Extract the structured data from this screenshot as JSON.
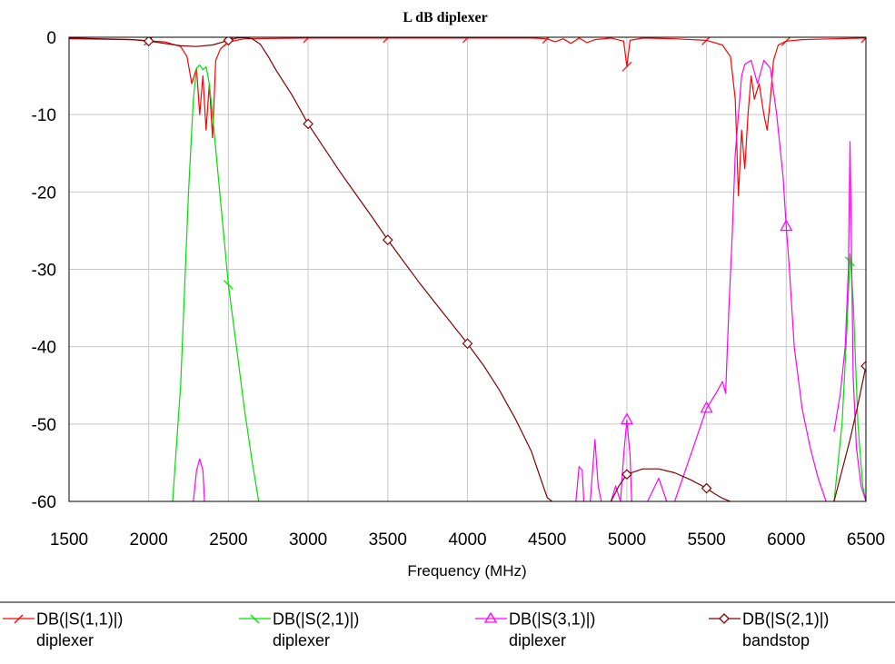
{
  "chart_data": {
    "type": "line",
    "title": "L dB diplexer",
    "xlabel": "Frequency (MHz)",
    "ylabel": "",
    "xlim": [
      1500,
      6500
    ],
    "ylim": [
      -60,
      0
    ],
    "xticks": [
      1500,
      2000,
      2500,
      3000,
      3500,
      4000,
      4500,
      5000,
      5500,
      6000,
      6500
    ],
    "yticks": [
      0,
      -10,
      -20,
      -30,
      -40,
      -50,
      -60
    ],
    "grid": true,
    "legend_position": "bottom",
    "series": [
      {
        "name": "DB(|S(1,1)|)",
        "sub": "diplexer",
        "color": "#ff0000",
        "marker": "tick",
        "markers_x": [
          1500,
          2000,
          2500,
          3000,
          3500,
          4000,
          4500,
          5000,
          5500,
          6000,
          6500
        ],
        "x": [
          1500,
          1900,
          2100,
          2200,
          2240,
          2270,
          2300,
          2320,
          2340,
          2360,
          2380,
          2400,
          2420,
          2450,
          2500,
          2600,
          3000,
          3500,
          4000,
          4400,
          4500,
          4550,
          4600,
          4650,
          4700,
          4750,
          4800,
          4900,
          4980,
          5000,
          5020,
          5100,
          5300,
          5500,
          5600,
          5650,
          5680,
          5700,
          5720,
          5740,
          5760,
          5780,
          5800,
          5830,
          5860,
          5880,
          5900,
          5920,
          5950,
          6000,
          6100,
          6300,
          6500
        ],
        "y": [
          -0.2,
          -0.3,
          -0.6,
          -1.2,
          -2.5,
          -6,
          -4,
          -10,
          -5,
          -12,
          -6,
          -13,
          -3,
          -1.5,
          -0.6,
          -0.2,
          -0.1,
          -0.1,
          -0.1,
          -0.1,
          -0.2,
          -0.6,
          -0.2,
          -0.8,
          -0.1,
          -0.7,
          -0.3,
          -0.1,
          -0.5,
          -3.8,
          -0.4,
          -0.1,
          -0.2,
          -0.4,
          -1,
          -2.5,
          -8,
          -20.5,
          -12,
          -17,
          -10,
          -5,
          -8,
          -6,
          -10,
          -12,
          -8,
          -3,
          -1,
          -0.5,
          -0.3,
          -0.2,
          -0.1
        ]
      },
      {
        "name": "DB(|S(2,1)|)",
        "sub": "diplexer",
        "color": "#00e000",
        "marker": "tick",
        "markers_x": [
          2500,
          6400
        ],
        "markers_y": [
          -32,
          -29
        ],
        "segments": [
          {
            "x": [
              2150,
              2200,
              2250,
              2280,
              2300,
              2320,
              2340,
              2360,
              2380,
              2400,
              2450,
              2500,
              2550,
              2600,
              2650,
              2690
            ],
            "y": [
              -60,
              -45,
              -20,
              -8,
              -4,
              -3.6,
              -4.2,
              -3.8,
              -6,
              -10,
              -21,
              -32,
              -40,
              -48,
              -55,
              -60
            ]
          },
          {
            "x": [
              6300,
              6350,
              6380,
              6400,
              6420,
              6450,
              6480,
              6500
            ],
            "y": [
              -60,
              -50,
              -38,
              -28,
              -34,
              -50,
              -58,
              -60
            ]
          }
        ]
      },
      {
        "name": "DB(|S(3,1)|)",
        "sub": "diplexer",
        "color": "#ff00ff",
        "marker": "triangle",
        "markers_x": [
          5000,
          5500,
          6000
        ],
        "markers_y": [
          -49.5,
          -48,
          -24.5
        ],
        "segments": [
          {
            "x": [
              2280,
              2300,
              2320,
              2340,
              2350
            ],
            "y": [
              -60,
              -56,
              -54.5,
              -56,
              -60
            ]
          },
          {
            "x": [
              4680,
              4700,
              4720,
              4730
            ],
            "y": [
              -60,
              -55.5,
              -56,
              -60
            ]
          },
          {
            "x": [
              4770,
              4800,
              4820,
              4840
            ],
            "y": [
              -60,
              -52,
              -58,
              -60
            ]
          },
          {
            "x": [
              4960,
              4980,
              5000,
              5020,
              5030
            ],
            "y": [
              -60,
              -54,
              -49.5,
              -54,
              -60
            ]
          },
          {
            "x": [
              4900,
              4930,
              4960
            ],
            "y": [
              -60,
              -58,
              -60
            ]
          },
          {
            "x": [
              5130,
              5200,
              5250
            ],
            "y": [
              -60,
              -57,
              -60
            ]
          },
          {
            "x": [
              5300,
              5400,
              5500,
              5560,
              5600,
              5620,
              5640,
              5660,
              5680,
              5700,
              5720,
              5740,
              5780,
              5820,
              5860,
              5900,
              5940,
              5980,
              6000,
              6020,
              6050,
              6100,
              6150,
              6200,
              6250
            ],
            "y": [
              -60,
              -54,
              -48,
              -46,
              -44.5,
              -46,
              -35,
              -26,
              -15,
              -10,
              -5,
              -3.5,
              -3,
              -6,
              -3,
              -4,
              -10,
              -18,
              -24.5,
              -30,
              -40,
              -48,
              -53,
              -57,
              -60
            ]
          },
          {
            "x": [
              6300,
              6340,
              6370,
              6390,
              6400,
              6410,
              6420,
              6440,
              6470,
              6500
            ],
            "y": [
              -51,
              -46,
              -40,
              -30,
              -13.5,
              -28,
              -44,
              -53,
              -58,
              -60
            ]
          }
        ]
      },
      {
        "name": "DB(|S(2,1)|)",
        "sub": "bandstop",
        "color": "#800000",
        "marker": "diamond",
        "markers_x": [
          2000,
          2500,
          3000,
          3500,
          4000,
          5000,
          5500,
          6500
        ],
        "markers_y": [
          -0.5,
          -0.4,
          -11.2,
          -26.2,
          -39.6,
          -56.5,
          -58.3,
          -42.5
        ],
        "segments": [
          {
            "x": [
              1500,
              1700,
              1900,
              2000,
              2100,
              2200,
              2300,
              2400,
              2500,
              2550,
              2600,
              2650,
              2700,
              2750,
              2800,
              2900,
              3000,
              3100,
              3200,
              3300,
              3400,
              3500,
              3600,
              3700,
              3800,
              3900,
              4000,
              4100,
              4200,
              4300,
              4400,
              4450,
              4500,
              4530
            ],
            "y": [
              -0.1,
              -0.2,
              -0.3,
              -0.5,
              -0.8,
              -1.1,
              -1.2,
              -1.0,
              -0.4,
              -0.1,
              -0.05,
              -0.2,
              -0.9,
              -2.5,
              -4.3,
              -7.5,
              -11.2,
              -14.3,
              -17.4,
              -20.3,
              -23.2,
              -26.2,
              -29.0,
              -31.8,
              -34.4,
              -37.0,
              -39.6,
              -42.4,
              -45.6,
              -49.3,
              -53.5,
              -56.5,
              -59.5,
              -60
            ]
          },
          {
            "x": [
              4900,
              4950,
              5000,
              5100,
              5200,
              5300,
              5400,
              5500,
              5550,
              5600,
              5650
            ],
            "y": [
              -60,
              -58,
              -56.5,
              -55.8,
              -55.8,
              -56.3,
              -57.2,
              -58.3,
              -59,
              -59.6,
              -60
            ]
          },
          {
            "x": [
              6300,
              6350,
              6400,
              6450,
              6500
            ],
            "y": [
              -60,
              -56,
              -52,
              -47.5,
              -42.5
            ]
          }
        ]
      }
    ]
  }
}
